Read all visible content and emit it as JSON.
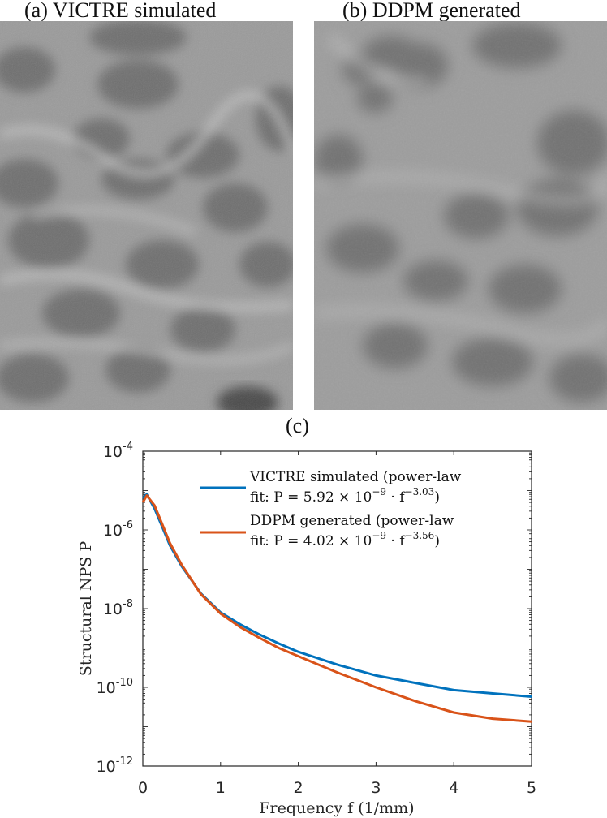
{
  "panels": [
    {
      "id": "a",
      "title": "(a) VICTRE simulated",
      "tone": "mammography-texture"
    },
    {
      "id": "b",
      "title": "(b) DDPM generated",
      "tone": "mammography-texture"
    }
  ],
  "panel_c_label": "(c)",
  "colors": {
    "victre": "#0072BD",
    "ddpm": "#D95319",
    "axis": "#262626"
  },
  "chart_data": {
    "type": "line",
    "title": "(c)",
    "xlabel": "Frequency f (1/mm)",
    "ylabel": "Structural NPS P",
    "xlim": [
      0,
      5
    ],
    "ylim": [
      1e-12,
      0.0001
    ],
    "yscale": "log",
    "xticks": [
      0,
      1,
      2,
      3,
      4,
      5
    ],
    "yticks": [
      "10^-4",
      "10^-6",
      "10^-8",
      "10^-10",
      "10^-12"
    ],
    "ytick_exponents": [
      -4,
      -6,
      -8,
      -10,
      -12
    ],
    "grid": false,
    "legend_position": "upper right (inside)",
    "x": [
      0.0,
      0.05,
      0.15,
      0.25,
      0.35,
      0.5,
      0.75,
      1.0,
      1.25,
      1.5,
      1.75,
      2.0,
      2.5,
      3.0,
      3.5,
      4.0,
      4.5,
      5.0
    ],
    "series": [
      {
        "name": "VICTRE simulated (power-law fit: P = 5.92 × 10^-9 · f^-3.03)",
        "legend_line1": "VICTRE simulated (power-law",
        "legend_line2_prefix": "fit:  P = 5.92 × 10",
        "legend_line2_exp1": "−9",
        "legend_line2_mid": " · f",
        "legend_line2_exp2": "−3.03",
        "legend_line2_suffix": ")",
        "fit_coefficient": 5.92e-09,
        "fit_exponent": -3.03,
        "values": [
          6.5e-06,
          8e-06,
          3.5e-06,
          1.2e-06,
          4e-07,
          1.2e-07,
          2.4e-08,
          8e-09,
          4e-09,
          2.2e-09,
          1.3e-09,
          8e-10,
          3.8e-10,
          2e-10,
          1.3e-10,
          8.5e-11,
          7e-11,
          5.8e-11
        ]
      },
      {
        "name": "DDPM generated (power-law fit: P = 4.02 × 10^-9 · f^-3.56)",
        "legend_line1": "DDPM generated (power-law",
        "legend_line2_prefix": "fit:  P = 4.02 × 10",
        "legend_line2_exp1": "−9",
        "legend_line2_mid": " · f",
        "legend_line2_exp2": "−3.56",
        "legend_line2_suffix": ")",
        "fit_coefficient": 4.02e-09,
        "fit_exponent": -3.56,
        "values": [
          5e-06,
          7.5e-06,
          4.2e-06,
          1.4e-06,
          4.6e-07,
          1.3e-07,
          2.3e-08,
          7.5e-09,
          3.4e-09,
          1.8e-09,
          1e-09,
          6.2e-10,
          2.4e-10,
          1e-10,
          4.5e-11,
          2.3e-11,
          1.6e-11,
          1.35e-11
        ]
      }
    ]
  }
}
